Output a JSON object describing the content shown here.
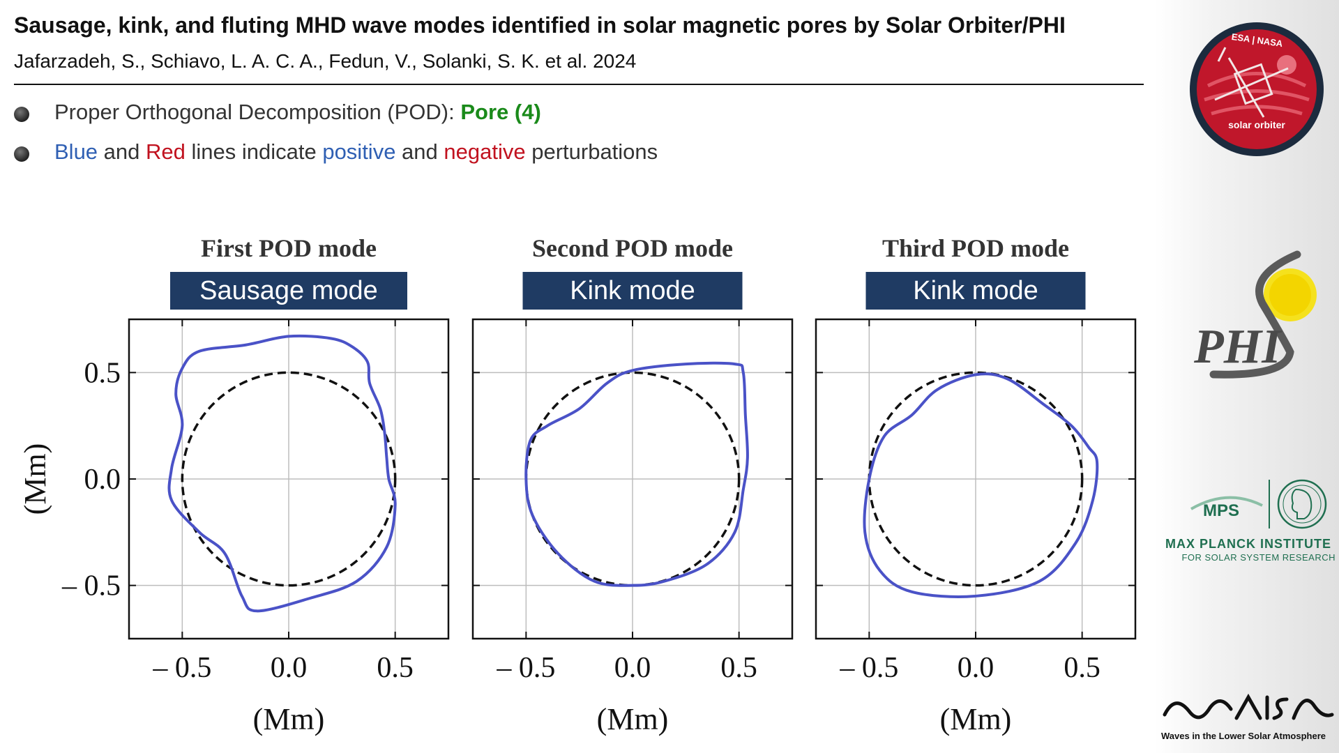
{
  "header": {
    "title": "Sausage, kink, and fluting MHD wave modes identified in solar magnetic pores by Solar Orbiter/PHI",
    "authors": "Jafarzadeh, S., Schiavo, L. A. C. A., Fedun, V., Solanki, S. K. et al. 2024"
  },
  "bullets": {
    "b1_prefix": "Proper Orthogonal Decomposition (POD): ",
    "b1_highlight": "Pore (4)",
    "b2_blue": "Blue",
    "b2_and1": " and ",
    "b2_red": "Red",
    "b2_mid": " lines indicate ",
    "b2_positive": "positive",
    "b2_and2": " and ",
    "b2_negative": "negative",
    "b2_suffix": " perturbations"
  },
  "colors": {
    "blue_text": "#2f5fb3",
    "red_text": "#c1121f",
    "green_text": "#1a8a1a",
    "mode_box": "#1f3b63",
    "curve": "#4a52c7",
    "reference_circle": "#111111",
    "orbiter_red": "#c0172b"
  },
  "logos": {
    "solar_orbiter_top": "ESA | NASA",
    "solar_orbiter_bottom": "solar orbiter",
    "phi": "PHI",
    "mps": "MPS",
    "mpi_title": "MAX PLANCK INSTITUTE",
    "mpi_subtitle": "FOR SOLAR SYSTEM RESEARCH",
    "wisa_subtitle": "Waves in the Lower Solar Atmosphere"
  },
  "chart_data": [
    {
      "type": "line",
      "title": "First POD mode",
      "mode_label": "Sausage mode",
      "xlabel": "(Mm)",
      "ylabel": "(Mm)",
      "xlim": [
        -0.75,
        0.75
      ],
      "ylim": [
        -0.75,
        0.75
      ],
      "xticks": [
        -0.5,
        0.0,
        0.5
      ],
      "yticks": [
        -0.5,
        0.0,
        0.5
      ],
      "xtick_labels": [
        "– 0.5",
        "0.0",
        "0.5"
      ],
      "ytick_labels": [
        "– 0.5",
        "0.0",
        "0.5"
      ],
      "grid": true,
      "reference_circle_radius": 0.5,
      "curve": [
        [
          0.0,
          0.67
        ],
        [
          0.2,
          0.66
        ],
        [
          0.3,
          0.62
        ],
        [
          0.37,
          0.55
        ],
        [
          0.38,
          0.45
        ],
        [
          0.43,
          0.33
        ],
        [
          0.45,
          0.22
        ],
        [
          0.46,
          0.1
        ],
        [
          0.47,
          0.0
        ],
        [
          0.5,
          -0.12
        ],
        [
          0.46,
          -0.32
        ],
        [
          0.32,
          -0.48
        ],
        [
          0.1,
          -0.56
        ],
        [
          -0.15,
          -0.62
        ],
        [
          -0.22,
          -0.55
        ],
        [
          -0.3,
          -0.35
        ],
        [
          -0.42,
          -0.25
        ],
        [
          -0.55,
          -0.1
        ],
        [
          -0.55,
          0.05
        ],
        [
          -0.5,
          0.25
        ],
        [
          -0.53,
          0.4
        ],
        [
          -0.5,
          0.52
        ],
        [
          -0.42,
          0.6
        ],
        [
          -0.2,
          0.63
        ],
        [
          0.0,
          0.67
        ]
      ]
    },
    {
      "type": "line",
      "title": "Second POD mode",
      "mode_label": "Kink mode",
      "xlabel": "(Mm)",
      "ylabel": "",
      "xlim": [
        -0.75,
        0.75
      ],
      "ylim": [
        -0.75,
        0.75
      ],
      "xticks": [
        -0.5,
        0.0,
        0.5
      ],
      "yticks": [
        -0.5,
        0.0,
        0.5
      ],
      "xtick_labels": [
        "– 0.5",
        "0.0",
        "0.5"
      ],
      "ytick_labels": [],
      "grid": true,
      "reference_circle_radius": 0.5,
      "curve": [
        [
          0.0,
          0.51
        ],
        [
          0.25,
          0.54
        ],
        [
          0.48,
          0.54
        ],
        [
          0.52,
          0.5
        ],
        [
          0.53,
          0.3
        ],
        [
          0.54,
          0.1
        ],
        [
          0.52,
          -0.05
        ],
        [
          0.48,
          -0.25
        ],
        [
          0.35,
          -0.4
        ],
        [
          0.15,
          -0.48
        ],
        [
          0.0,
          -0.5
        ],
        [
          -0.18,
          -0.48
        ],
        [
          -0.35,
          -0.35
        ],
        [
          -0.47,
          -0.17
        ],
        [
          -0.5,
          0.0
        ],
        [
          -0.48,
          0.18
        ],
        [
          -0.4,
          0.25
        ],
        [
          -0.25,
          0.33
        ],
        [
          -0.12,
          0.45
        ],
        [
          0.0,
          0.51
        ]
      ]
    },
    {
      "type": "line",
      "title": "Third POD mode",
      "mode_label": "Kink mode",
      "xlabel": "(Mm)",
      "ylabel": "",
      "xlim": [
        -0.75,
        0.75
      ],
      "ylim": [
        -0.75,
        0.75
      ],
      "xticks": [
        -0.5,
        0.0,
        0.5
      ],
      "yticks": [
        -0.5,
        0.0,
        0.5
      ],
      "xtick_labels": [
        "– 0.5",
        "0.0",
        "0.5"
      ],
      "ytick_labels": [],
      "grid": true,
      "reference_circle_radius": 0.5,
      "curve": [
        [
          0.0,
          0.49
        ],
        [
          0.15,
          0.47
        ],
        [
          0.32,
          0.35
        ],
        [
          0.45,
          0.25
        ],
        [
          0.53,
          0.15
        ],
        [
          0.57,
          0.08
        ],
        [
          0.55,
          -0.1
        ],
        [
          0.47,
          -0.3
        ],
        [
          0.3,
          -0.48
        ],
        [
          0.0,
          -0.55
        ],
        [
          -0.3,
          -0.53
        ],
        [
          -0.45,
          -0.43
        ],
        [
          -0.52,
          -0.25
        ],
        [
          -0.5,
          0.0
        ],
        [
          -0.43,
          0.2
        ],
        [
          -0.3,
          0.3
        ],
        [
          -0.18,
          0.42
        ],
        [
          0.0,
          0.49
        ]
      ]
    }
  ]
}
